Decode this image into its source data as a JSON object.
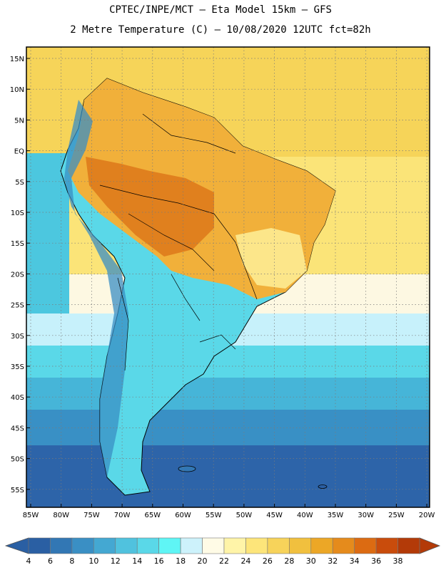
{
  "header": {
    "line1": "CPTEC/INPE/MCT –  Eta Model 15km – GFS",
    "line2": "2 Metre Temperature (C) – 10/08/2020 12UTC fct=82h"
  },
  "map": {
    "lat_labels": [
      "15N",
      "10N",
      "5N",
      "EQ",
      "5S",
      "10S",
      "15S",
      "20S",
      "25S",
      "30S",
      "35S",
      "40S",
      "45S",
      "50S",
      "55S"
    ],
    "lon_labels": [
      "85W",
      "80W",
      "75W",
      "70W",
      "65W",
      "60W",
      "55W",
      "50W",
      "45W",
      "40W",
      "35W",
      "30W",
      "25W",
      "20W"
    ]
  },
  "colorbar": {
    "labels": [
      "4",
      "6",
      "8",
      "10",
      "12",
      "14",
      "16",
      "18",
      "20",
      "22",
      "24",
      "26",
      "28",
      "30",
      "32",
      "34",
      "36",
      "38"
    ],
    "colors": [
      "#2a5fa3",
      "#3277b4",
      "#3a8fc4",
      "#44a8d2",
      "#50c2de",
      "#5ad8e8",
      "#5ff5f5",
      "#cdf2fb",
      "#fffbe6",
      "#fff4a8",
      "#fde57a",
      "#f7d35a",
      "#f1c03e",
      "#eca726",
      "#e58b1c",
      "#dc6b12",
      "#c94c0c",
      "#b33a08"
    ]
  }
}
